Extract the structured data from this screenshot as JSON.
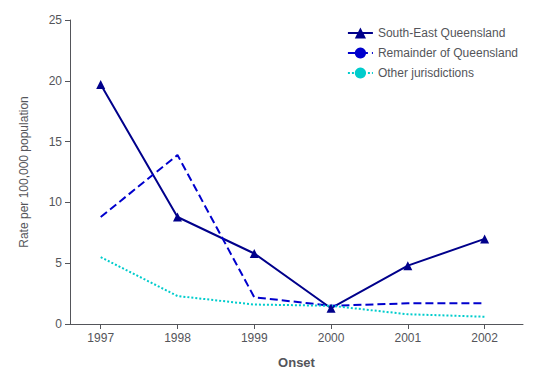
{
  "chart_data": {
    "type": "line",
    "x": [
      1997,
      1998,
      1999,
      2000,
      2001,
      2002
    ],
    "xlabel": "Onset",
    "ylabel": "Rate per 100,000 population",
    "xlim": [
      1996.6,
      2002.5
    ],
    "xticks": [
      1997,
      1998,
      1999,
      2000,
      2001,
      2002
    ],
    "ylim": [
      0,
      25
    ],
    "yticks": [
      0,
      5,
      10,
      15,
      20,
      25
    ],
    "grid": false,
    "legend": "upper right",
    "series": [
      {
        "name": "South-East Queensland",
        "color": "#00008B",
        "values": [
          19.7,
          8.8,
          5.8,
          1.3,
          4.8,
          7.0
        ],
        "marker": "triangle",
        "line_style": "solid"
      },
      {
        "name": "Remainder of Queensland",
        "color": "#0000CD",
        "values": [
          8.8,
          13.9,
          2.2,
          1.5,
          1.7,
          1.7
        ],
        "marker": "none",
        "line_style": "dashed"
      },
      {
        "name": "Other jurisdictions",
        "color": "#00CCCC",
        "values": [
          5.5,
          2.3,
          1.6,
          1.5,
          0.8,
          0.6
        ],
        "marker": "none",
        "line_style": "dotted"
      }
    ]
  }
}
